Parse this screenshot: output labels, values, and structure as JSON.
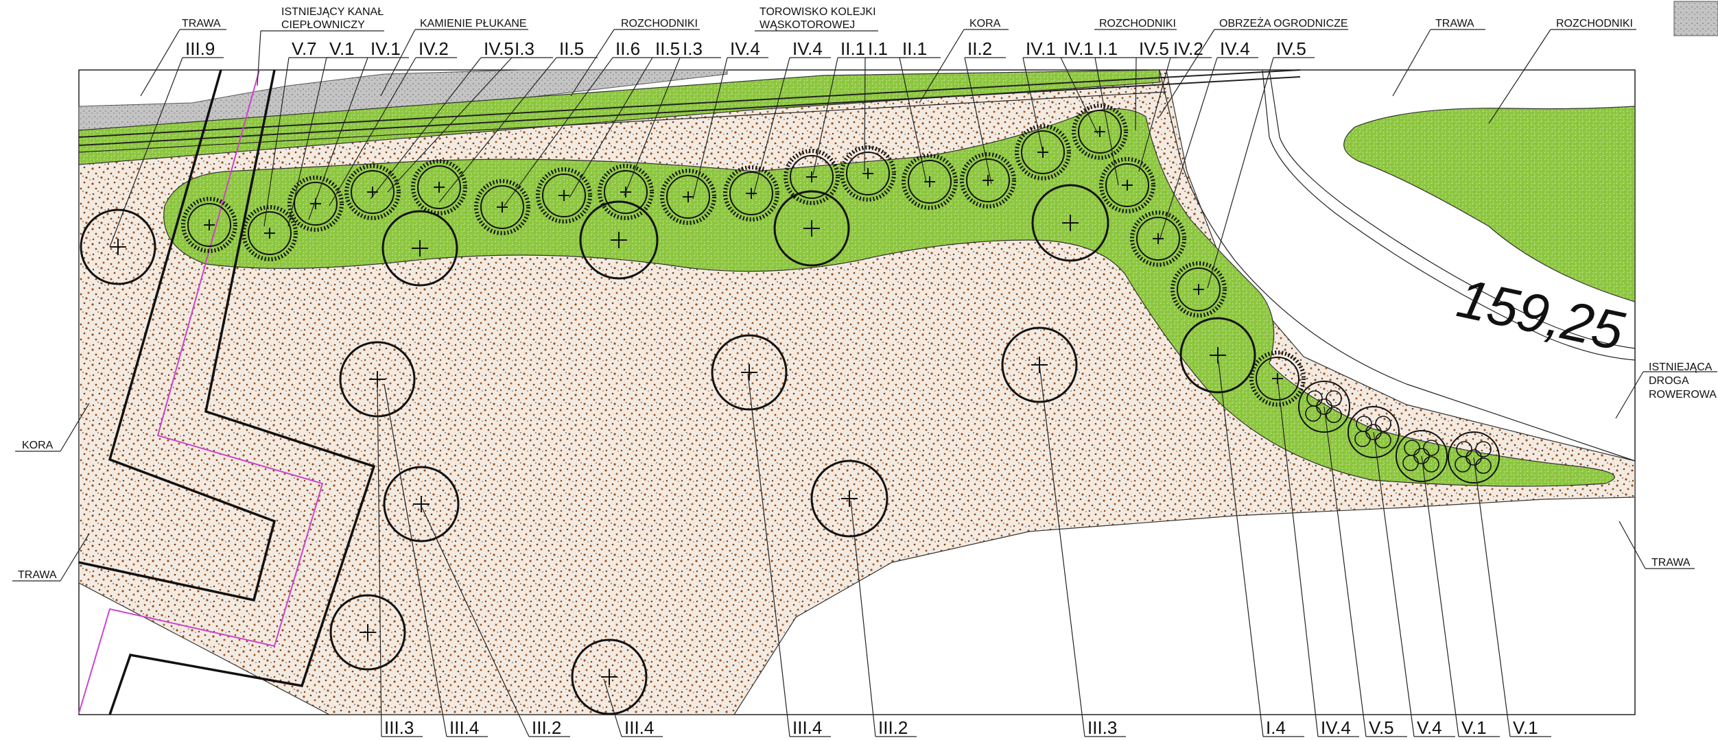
{
  "labels": {
    "trawa": "TRAWA",
    "kanal_line1": "ISTNIEJĄCY KANAŁ",
    "kanal_line2": "CIEPŁOWNICZY",
    "kamienie": "KAMIENIE PŁUKANE",
    "rozchodniki": "ROZCHODNIKI",
    "torowisko_line1": "TOROWISKO KOLEJKI",
    "torowisko_line2": "WĄSKOTOROWEJ",
    "kora": "KORA",
    "obrzeza": "OBRZEŻA OGRODNICZE",
    "droga_line1": "ISTNIEJĄCA",
    "droga_line2": "DROGA",
    "droga_line3": "ROWEROWA",
    "elevation": "159,25"
  },
  "top_codes": [
    "III.9",
    "V.7",
    "V.1",
    "IV.1",
    "IV.2",
    "IV.5",
    "I.3",
    "II.5",
    "II.6",
    "II.5",
    "I.3",
    "IV.4",
    "IV.4",
    "II.1",
    "I.1",
    "II.1",
    "II.2",
    "IV.1",
    "IV.1",
    "I.1",
    "IV.5",
    "IV.2",
    "IV.4",
    "IV.5"
  ],
  "bottom_codes": [
    "III.3",
    "III.4",
    "III.2",
    "III.4",
    "III.4",
    "III.2",
    "III.3",
    "I.4",
    "IV.4",
    "V.5",
    "V.4",
    "V.1",
    "V.1"
  ],
  "colors": {
    "green": "#8cc63f",
    "bark": "#f3ebe2",
    "bark_dot": "#9a4e18",
    "gravel": "#bdbdbd",
    "track_green": "#7cbc32",
    "pipe": "#cc44cc"
  }
}
